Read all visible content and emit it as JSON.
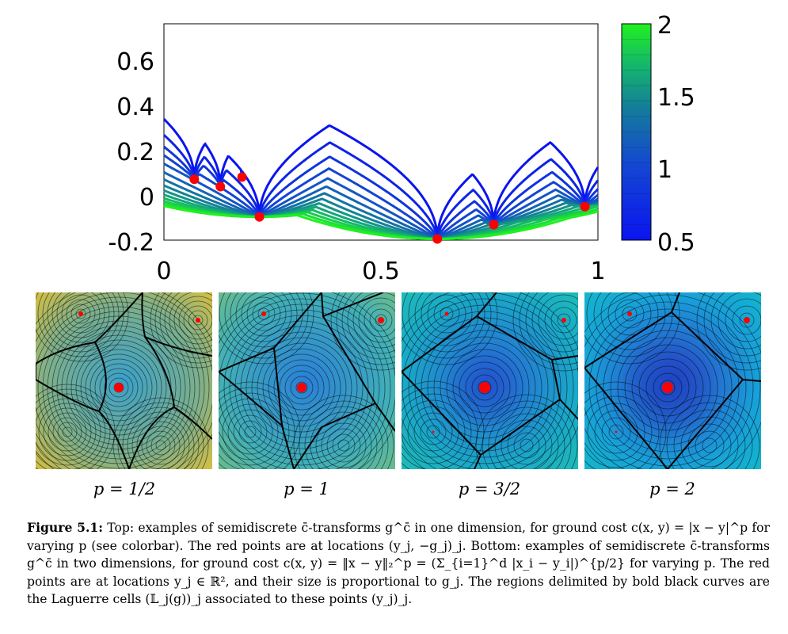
{
  "top_plot": {
    "y_ticks": [
      "0.6",
      "0.4",
      "0.2",
      "0",
      "-0.2"
    ],
    "x_ticks": [
      "0",
      "0.5",
      "1"
    ],
    "colorbar_ticks": [
      "2",
      "1.5",
      "1",
      "0.5"
    ],
    "colormap": [
      "#0a14f0",
      "#1448d2",
      "#147a9c",
      "#14b46e",
      "#20f020"
    ],
    "red_points": [
      {
        "x": 0.07,
        "y": 0.067
      },
      {
        "x": 0.13,
        "y": 0.035
      },
      {
        "x": 0.18,
        "y": 0.077
      },
      {
        "x": 0.22,
        "y": -0.098
      },
      {
        "x": 0.63,
        "y": -0.195
      },
      {
        "x": 0.76,
        "y": -0.132
      },
      {
        "x": 0.97,
        "y": -0.053
      }
    ],
    "y_range": [
      -0.2,
      0.75
    ],
    "x_range": [
      0,
      1
    ],
    "p_range": [
      0.5,
      2
    ]
  },
  "panels": [
    {
      "label": "p = 1/2"
    },
    {
      "label": "p = 1"
    },
    {
      "label": "p = 3/2"
    },
    {
      "label": "p = 2"
    }
  ],
  "caption": {
    "figure_label": "Figure 5.1:",
    "text": "Top: examples of semidiscrete c̄-transforms g^c̄ in one dimension, for ground cost c(x, y) = |x − y|^p for varying p (see colorbar). The red points are at locations (y_j, −g_j)_j. Bottom: examples of semidiscrete c̄-transforms g^c̄ in two dimensions, for ground cost c(x, y) = ‖x − y‖₂^p = (Σ_{i=1}^d |x_i − y_i|)^{p/2} for varying p. The red points are at locations y_j ∈ ℝ², and their size is proportional to g_j. The regions delimited by bold black curves are the Laguerre cells (𝕃_j(g))_j associated to these points (y_j)_j."
  }
}
